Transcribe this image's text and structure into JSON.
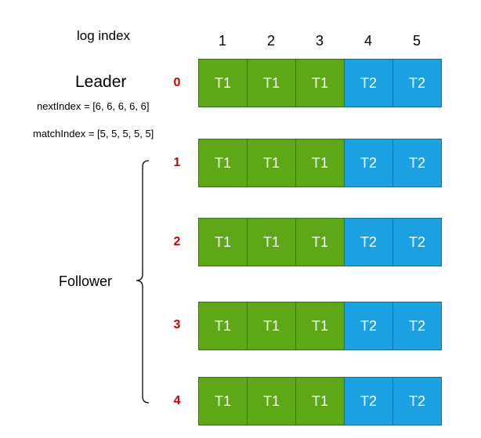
{
  "header": {
    "log_index_label": "log index",
    "indices": [
      "1",
      "2",
      "3",
      "4",
      "5"
    ]
  },
  "leader": {
    "title": "Leader",
    "next_index": "nextIndex = [6, 6, 6, 6, 6]",
    "match_index": "matchIndex = [5, 5, 5, 5, 5]"
  },
  "follower_label": "Follower",
  "colors": {
    "t1": "#5ea818",
    "t2": "#1ba1e2",
    "node_id": "#cc0000"
  },
  "nodes": [
    {
      "id": "0",
      "entries": [
        "T1",
        "T1",
        "T1",
        "T2",
        "T2"
      ]
    },
    {
      "id": "1",
      "entries": [
        "T1",
        "T1",
        "T1",
        "T2",
        "T2"
      ]
    },
    {
      "id": "2",
      "entries": [
        "T1",
        "T1",
        "T1",
        "T2",
        "T2"
      ]
    },
    {
      "id": "3",
      "entries": [
        "T1",
        "T1",
        "T1",
        "T2",
        "T2"
      ]
    },
    {
      "id": "4",
      "entries": [
        "T1",
        "T1",
        "T1",
        "T2",
        "T2"
      ]
    }
  ]
}
